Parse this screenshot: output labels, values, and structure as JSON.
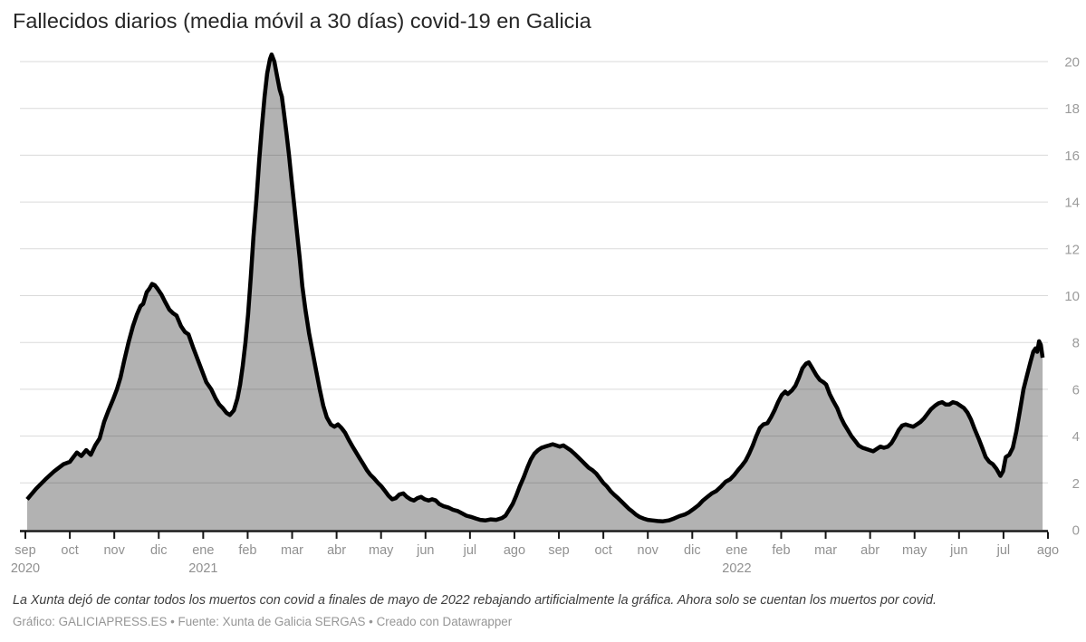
{
  "title": "Fallecidos diarios (media móvil a 30 días) covid-19 en Galicia",
  "note": "La Xunta dejó de contar todos los muertos con covid a finales de mayo de 2022 rebajando artificialmente la gráfica. Ahora solo se cuentan los muertos por covid.",
  "credit": "Gráfico: GALICIAPRESS.ES • Fuente: Xunta de Galicia SERGAS • Creado con Datawrapper",
  "chart_data": {
    "type": "area",
    "title": "Fallecidos diarios (media móvil a 30 días) covid-19 en Galicia",
    "xlabel": "",
    "ylabel": "",
    "x_unit": "months since sep 2020 tick (0 = sep 2020, 23 = ago 2022)",
    "ylim": [
      0,
      20.5
    ],
    "y_ticks": [
      0,
      2,
      4,
      6,
      8,
      10,
      12,
      14,
      16,
      18,
      20
    ],
    "y_axis_side": "right",
    "grid": "horizontal",
    "legend": "none",
    "colors": {
      "line": "#000000",
      "fill": "rgba(0,0,0,0.30)",
      "grid": "#dadada",
      "axis": "#161616",
      "tick_label": "#909090",
      "y_label": "#9b9b9b"
    },
    "x_tick_labels": [
      {
        "m": "sep",
        "y": "2020"
      },
      {
        "m": "oct"
      },
      {
        "m": "nov"
      },
      {
        "m": "dic"
      },
      {
        "m": "ene",
        "y": "2021"
      },
      {
        "m": "feb"
      },
      {
        "m": "mar"
      },
      {
        "m": "abr"
      },
      {
        "m": "may"
      },
      {
        "m": "jun"
      },
      {
        "m": "jul"
      },
      {
        "m": "ago"
      },
      {
        "m": "sep"
      },
      {
        "m": "oct"
      },
      {
        "m": "nov"
      },
      {
        "m": "dic"
      },
      {
        "m": "ene",
        "y": "2022"
      },
      {
        "m": "feb"
      },
      {
        "m": "mar"
      },
      {
        "m": "abr"
      },
      {
        "m": "may"
      },
      {
        "m": "jun"
      },
      {
        "m": "jul"
      },
      {
        "m": "ago"
      }
    ],
    "series": [
      {
        "name": "fallecidos diarios (media móvil a 30 días)",
        "points": [
          [
            0.04,
            1.3
          ],
          [
            0.24,
            1.75
          ],
          [
            0.45,
            2.15
          ],
          [
            0.65,
            2.5
          ],
          [
            0.86,
            2.8
          ],
          [
            1.0,
            2.9
          ],
          [
            1.16,
            3.3
          ],
          [
            1.26,
            3.15
          ],
          [
            1.37,
            3.4
          ],
          [
            1.47,
            3.2
          ],
          [
            1.57,
            3.6
          ],
          [
            1.67,
            3.9
          ],
          [
            1.77,
            4.6
          ],
          [
            1.87,
            5.1
          ],
          [
            1.98,
            5.6
          ],
          [
            2.06,
            6.0
          ],
          [
            2.14,
            6.5
          ],
          [
            2.22,
            7.2
          ],
          [
            2.32,
            8.0
          ],
          [
            2.42,
            8.7
          ],
          [
            2.51,
            9.2
          ],
          [
            2.59,
            9.55
          ],
          [
            2.65,
            9.65
          ],
          [
            2.73,
            10.15
          ],
          [
            2.79,
            10.3
          ],
          [
            2.85,
            10.5
          ],
          [
            2.91,
            10.45
          ],
          [
            2.97,
            10.3
          ],
          [
            3.06,
            10.05
          ],
          [
            3.14,
            9.75
          ],
          [
            3.24,
            9.4
          ],
          [
            3.32,
            9.25
          ],
          [
            3.4,
            9.15
          ],
          [
            3.5,
            8.7
          ],
          [
            3.59,
            8.45
          ],
          [
            3.67,
            8.35
          ],
          [
            3.77,
            7.8
          ],
          [
            3.87,
            7.3
          ],
          [
            3.97,
            6.8
          ],
          [
            4.07,
            6.3
          ],
          [
            4.18,
            6.0
          ],
          [
            4.28,
            5.6
          ],
          [
            4.36,
            5.35
          ],
          [
            4.44,
            5.2
          ],
          [
            4.52,
            5.0
          ],
          [
            4.6,
            4.9
          ],
          [
            4.69,
            5.1
          ],
          [
            4.77,
            5.6
          ],
          [
            4.83,
            6.2
          ],
          [
            4.89,
            7.0
          ],
          [
            4.95,
            8.0
          ],
          [
            5.01,
            9.2
          ],
          [
            5.07,
            10.8
          ],
          [
            5.13,
            12.5
          ],
          [
            5.2,
            14.2
          ],
          [
            5.26,
            15.8
          ],
          [
            5.32,
            17.2
          ],
          [
            5.38,
            18.5
          ],
          [
            5.44,
            19.5
          ],
          [
            5.5,
            20.1
          ],
          [
            5.54,
            20.3
          ],
          [
            5.6,
            20.0
          ],
          [
            5.66,
            19.4
          ],
          [
            5.72,
            18.8
          ],
          [
            5.77,
            18.5
          ],
          [
            5.81,
            17.9
          ],
          [
            5.87,
            17.0
          ],
          [
            5.93,
            16.0
          ],
          [
            5.99,
            14.9
          ],
          [
            6.05,
            13.8
          ],
          [
            6.11,
            12.7
          ],
          [
            6.17,
            11.6
          ],
          [
            6.23,
            10.4
          ],
          [
            6.3,
            9.4
          ],
          [
            6.38,
            8.4
          ],
          [
            6.46,
            7.6
          ],
          [
            6.54,
            6.8
          ],
          [
            6.62,
            6.0
          ],
          [
            6.7,
            5.3
          ],
          [
            6.78,
            4.8
          ],
          [
            6.87,
            4.5
          ],
          [
            6.95,
            4.4
          ],
          [
            7.03,
            4.5
          ],
          [
            7.11,
            4.35
          ],
          [
            7.19,
            4.15
          ],
          [
            7.27,
            3.85
          ],
          [
            7.36,
            3.55
          ],
          [
            7.44,
            3.3
          ],
          [
            7.52,
            3.05
          ],
          [
            7.6,
            2.8
          ],
          [
            7.68,
            2.55
          ],
          [
            7.76,
            2.35
          ],
          [
            7.84,
            2.2
          ],
          [
            7.93,
            2.0
          ],
          [
            8.01,
            1.85
          ],
          [
            8.09,
            1.65
          ],
          [
            8.17,
            1.45
          ],
          [
            8.25,
            1.3
          ],
          [
            8.33,
            1.35
          ],
          [
            8.41,
            1.5
          ],
          [
            8.5,
            1.55
          ],
          [
            8.58,
            1.4
          ],
          [
            8.66,
            1.3
          ],
          [
            8.74,
            1.25
          ],
          [
            8.82,
            1.35
          ],
          [
            8.9,
            1.4
          ],
          [
            8.98,
            1.3
          ],
          [
            9.07,
            1.25
          ],
          [
            9.15,
            1.3
          ],
          [
            9.23,
            1.25
          ],
          [
            9.31,
            1.1
          ],
          [
            9.41,
            1.0
          ],
          [
            9.51,
            0.95
          ],
          [
            9.62,
            0.85
          ],
          [
            9.72,
            0.8
          ],
          [
            9.82,
            0.7
          ],
          [
            9.92,
            0.6
          ],
          [
            10.02,
            0.55
          ],
          [
            10.13,
            0.48
          ],
          [
            10.23,
            0.42
          ],
          [
            10.35,
            0.4
          ],
          [
            10.47,
            0.44
          ],
          [
            10.59,
            0.42
          ],
          [
            10.72,
            0.5
          ],
          [
            10.8,
            0.6
          ],
          [
            10.88,
            0.85
          ],
          [
            10.96,
            1.1
          ],
          [
            11.04,
            1.45
          ],
          [
            11.12,
            1.85
          ],
          [
            11.21,
            2.25
          ],
          [
            11.29,
            2.65
          ],
          [
            11.37,
            3.0
          ],
          [
            11.45,
            3.25
          ],
          [
            11.53,
            3.4
          ],
          [
            11.61,
            3.5
          ],
          [
            11.69,
            3.55
          ],
          [
            11.78,
            3.6
          ],
          [
            11.86,
            3.65
          ],
          [
            11.94,
            3.6
          ],
          [
            12.02,
            3.55
          ],
          [
            12.1,
            3.6
          ],
          [
            12.18,
            3.5
          ],
          [
            12.26,
            3.4
          ],
          [
            12.35,
            3.25
          ],
          [
            12.43,
            3.1
          ],
          [
            12.51,
            2.95
          ],
          [
            12.59,
            2.8
          ],
          [
            12.67,
            2.65
          ],
          [
            12.75,
            2.55
          ],
          [
            12.84,
            2.4
          ],
          [
            12.92,
            2.2
          ],
          [
            13.0,
            2.0
          ],
          [
            13.08,
            1.85
          ],
          [
            13.16,
            1.65
          ],
          [
            13.24,
            1.5
          ],
          [
            13.33,
            1.35
          ],
          [
            13.41,
            1.2
          ],
          [
            13.49,
            1.05
          ],
          [
            13.57,
            0.9
          ],
          [
            13.65,
            0.78
          ],
          [
            13.73,
            0.65
          ],
          [
            13.81,
            0.55
          ],
          [
            13.9,
            0.48
          ],
          [
            14.0,
            0.42
          ],
          [
            14.1,
            0.4
          ],
          [
            14.22,
            0.37
          ],
          [
            14.34,
            0.36
          ],
          [
            14.47,
            0.4
          ],
          [
            14.59,
            0.48
          ],
          [
            14.71,
            0.58
          ],
          [
            14.83,
            0.65
          ],
          [
            14.93,
            0.75
          ],
          [
            15.04,
            0.9
          ],
          [
            15.14,
            1.05
          ],
          [
            15.24,
            1.25
          ],
          [
            15.34,
            1.4
          ],
          [
            15.44,
            1.55
          ],
          [
            15.54,
            1.65
          ],
          [
            15.65,
            1.85
          ],
          [
            15.75,
            2.05
          ],
          [
            15.85,
            2.15
          ],
          [
            15.95,
            2.35
          ],
          [
            16.03,
            2.55
          ],
          [
            16.12,
            2.75
          ],
          [
            16.2,
            2.95
          ],
          [
            16.28,
            3.25
          ],
          [
            16.36,
            3.6
          ],
          [
            16.44,
            4.0
          ],
          [
            16.52,
            4.35
          ],
          [
            16.6,
            4.5
          ],
          [
            16.69,
            4.55
          ],
          [
            16.77,
            4.8
          ],
          [
            16.85,
            5.1
          ],
          [
            16.93,
            5.45
          ],
          [
            17.01,
            5.75
          ],
          [
            17.09,
            5.9
          ],
          [
            17.15,
            5.8
          ],
          [
            17.24,
            5.95
          ],
          [
            17.32,
            6.15
          ],
          [
            17.4,
            6.5
          ],
          [
            17.48,
            6.9
          ],
          [
            17.56,
            7.1
          ],
          [
            17.62,
            7.15
          ],
          [
            17.7,
            6.9
          ],
          [
            17.79,
            6.6
          ],
          [
            17.87,
            6.4
          ],
          [
            17.95,
            6.3
          ],
          [
            18.01,
            6.2
          ],
          [
            18.09,
            5.8
          ],
          [
            18.17,
            5.5
          ],
          [
            18.26,
            5.2
          ],
          [
            18.34,
            4.8
          ],
          [
            18.42,
            4.5
          ],
          [
            18.5,
            4.25
          ],
          [
            18.58,
            4.0
          ],
          [
            18.66,
            3.8
          ],
          [
            18.74,
            3.6
          ],
          [
            18.83,
            3.5
          ],
          [
            18.91,
            3.45
          ],
          [
            18.99,
            3.4
          ],
          [
            19.07,
            3.35
          ],
          [
            19.15,
            3.45
          ],
          [
            19.23,
            3.55
          ],
          [
            19.31,
            3.5
          ],
          [
            19.4,
            3.55
          ],
          [
            19.48,
            3.7
          ],
          [
            19.56,
            3.95
          ],
          [
            19.64,
            4.25
          ],
          [
            19.72,
            4.45
          ],
          [
            19.8,
            4.5
          ],
          [
            19.88,
            4.45
          ],
          [
            19.97,
            4.4
          ],
          [
            20.05,
            4.5
          ],
          [
            20.13,
            4.6
          ],
          [
            20.21,
            4.75
          ],
          [
            20.29,
            4.95
          ],
          [
            20.37,
            5.15
          ],
          [
            20.46,
            5.3
          ],
          [
            20.54,
            5.4
          ],
          [
            20.62,
            5.45
          ],
          [
            20.7,
            5.35
          ],
          [
            20.78,
            5.35
          ],
          [
            20.86,
            5.45
          ],
          [
            20.95,
            5.4
          ],
          [
            21.03,
            5.3
          ],
          [
            21.11,
            5.2
          ],
          [
            21.19,
            5.0
          ],
          [
            21.27,
            4.7
          ],
          [
            21.35,
            4.3
          ],
          [
            21.44,
            3.9
          ],
          [
            21.52,
            3.5
          ],
          [
            21.6,
            3.1
          ],
          [
            21.68,
            2.9
          ],
          [
            21.76,
            2.8
          ],
          [
            21.84,
            2.6
          ],
          [
            21.93,
            2.3
          ],
          [
            21.99,
            2.5
          ],
          [
            22.05,
            3.1
          ],
          [
            22.13,
            3.2
          ],
          [
            22.21,
            3.5
          ],
          [
            22.29,
            4.2
          ],
          [
            22.37,
            5.1
          ],
          [
            22.45,
            6.0
          ],
          [
            22.53,
            6.6
          ],
          [
            22.61,
            7.2
          ],
          [
            22.67,
            7.6
          ],
          [
            22.72,
            7.75
          ],
          [
            22.76,
            7.6
          ],
          [
            22.8,
            8.05
          ],
          [
            22.84,
            7.9
          ],
          [
            22.88,
            7.35
          ]
        ]
      }
    ]
  }
}
